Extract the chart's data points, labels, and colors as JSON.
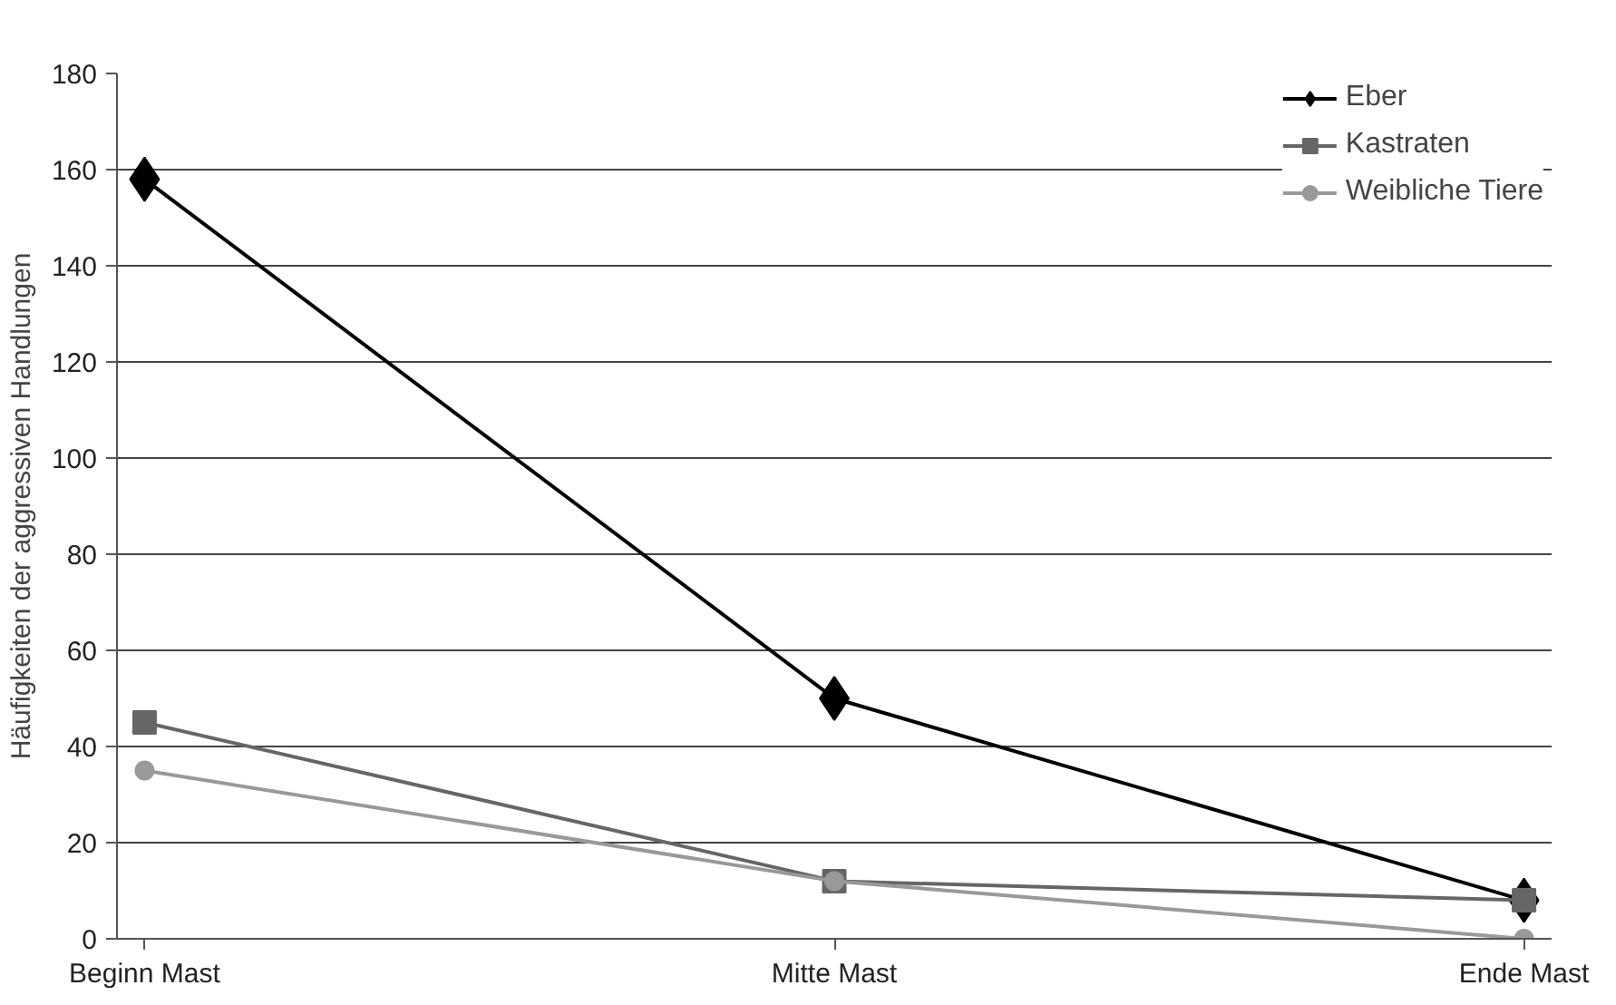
{
  "chart_data": {
    "type": "line",
    "ylabel": "Häufigkeiten der aggressiven Handlungen",
    "categories": [
      "Beginn Mast",
      "Mitte Mast",
      "Ende Mast"
    ],
    "series": [
      {
        "name": "Eber",
        "color": "#000000",
        "marker": "diamond",
        "values": [
          158,
          50,
          8
        ]
      },
      {
        "name": "Kastraten",
        "color": "#666666",
        "marker": "square",
        "values": [
          45,
          12,
          8
        ]
      },
      {
        "name": "Weibliche Tiere",
        "color": "#999999",
        "marker": "circle",
        "values": [
          35,
          12,
          0
        ]
      }
    ],
    "ylim": [
      0,
      180
    ],
    "yticks": [
      0,
      20,
      40,
      60,
      80,
      100,
      120,
      140,
      160,
      180
    ],
    "grid": "y",
    "legend": "top right",
    "line_style": "solid"
  }
}
